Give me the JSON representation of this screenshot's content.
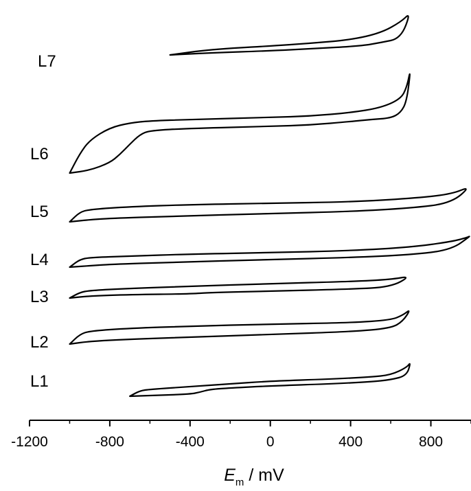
{
  "chart_data": {
    "type": "line",
    "title": "",
    "xlabel": {
      "symbol": "E",
      "subscript": "m",
      "unit": " / mV"
    },
    "ylabel": "",
    "xlim": [
      -1200,
      1000
    ],
    "x_ticks": [
      -1200,
      -800,
      -400,
      0,
      400,
      800
    ],
    "x_tick_labels": [
      "-1200",
      "-800",
      "-400",
      "0",
      "400",
      "800"
    ],
    "y_axis_shown": false,
    "grid": false,
    "legend": "none",
    "series": [
      {
        "name": "L7",
        "baseline": 0,
        "x_range": [
          -500,
          700
        ],
        "upper": [
          [
            -500,
            0
          ],
          [
            -300,
            8
          ],
          [
            0,
            13
          ],
          [
            200,
            17
          ],
          [
            400,
            22
          ],
          [
            550,
            32
          ],
          [
            650,
            48
          ],
          [
            700,
            62
          ]
        ],
        "lower": [
          [
            -500,
            0
          ],
          [
            -300,
            3
          ],
          [
            0,
            6
          ],
          [
            200,
            9
          ],
          [
            450,
            13
          ],
          [
            550,
            18
          ],
          [
            650,
            24
          ],
          [
            700,
            33
          ]
        ]
      },
      {
        "name": "L6",
        "baseline": 0,
        "x_range": [
          -1000,
          700
        ],
        "upper": [
          [
            -1000,
            0
          ],
          [
            -950,
            28
          ],
          [
            -900,
            48
          ],
          [
            -800,
            66
          ],
          [
            -700,
            73
          ],
          [
            -600,
            76
          ],
          [
            -400,
            78
          ],
          [
            0,
            81
          ],
          [
            200,
            83
          ],
          [
            400,
            88
          ],
          [
            550,
            95
          ],
          [
            650,
            108
          ],
          [
            680,
            125
          ],
          [
            700,
            153
          ]
        ],
        "lower": [
          [
            -1000,
            0
          ],
          [
            -900,
            4
          ],
          [
            -800,
            15
          ],
          [
            -750,
            27
          ],
          [
            -700,
            42
          ],
          [
            -650,
            56
          ],
          [
            -600,
            62
          ],
          [
            -400,
            65
          ],
          [
            0,
            68
          ],
          [
            200,
            70
          ],
          [
            400,
            75
          ],
          [
            500,
            78
          ],
          [
            600,
            80
          ],
          [
            650,
            88
          ],
          [
            680,
            105
          ],
          [
            700,
            125
          ]
        ]
      },
      {
        "name": "L5",
        "baseline": 0,
        "x_range": [
          -1000,
          1000
        ],
        "upper": [
          [
            -1000,
            0
          ],
          [
            -950,
            14
          ],
          [
            -900,
            18
          ],
          [
            -700,
            22
          ],
          [
            -400,
            25
          ],
          [
            0,
            27
          ],
          [
            400,
            29
          ],
          [
            700,
            34
          ],
          [
            900,
            40
          ],
          [
            1000,
            52
          ]
        ],
        "lower": [
          [
            -1000,
            0
          ],
          [
            -900,
            3
          ],
          [
            -800,
            5
          ],
          [
            -500,
            8
          ],
          [
            0,
            12
          ],
          [
            400,
            15
          ],
          [
            700,
            20
          ],
          [
            900,
            27
          ],
          [
            1000,
            37
          ]
        ]
      },
      {
        "name": "L4",
        "baseline": 0,
        "x_range": [
          -1000,
          1000
        ],
        "upper": [
          [
            -1000,
            0
          ],
          [
            -950,
            11
          ],
          [
            -900,
            14
          ],
          [
            -700,
            16
          ],
          [
            -400,
            19
          ],
          [
            0,
            21
          ],
          [
            400,
            24
          ],
          [
            700,
            29
          ],
          [
            900,
            37
          ],
          [
            980,
            43
          ],
          [
            1000,
            46
          ]
        ],
        "lower": [
          [
            -1000,
            0
          ],
          [
            -900,
            2
          ],
          [
            -800,
            4
          ],
          [
            -500,
            7
          ],
          [
            0,
            11
          ],
          [
            400,
            14
          ],
          [
            700,
            18
          ],
          [
            900,
            25
          ],
          [
            1000,
            35
          ]
        ]
      },
      {
        "name": "L3",
        "baseline": 0,
        "x_range": [
          -1000,
          700
        ],
        "upper": [
          [
            -1000,
            0
          ],
          [
            -950,
            8
          ],
          [
            -900,
            11
          ],
          [
            -700,
            14
          ],
          [
            -400,
            17
          ],
          [
            0,
            21
          ],
          [
            400,
            24
          ],
          [
            600,
            27
          ],
          [
            700,
            32
          ]
        ],
        "lower": [
          [
            -1000,
            0
          ],
          [
            -900,
            3
          ],
          [
            -700,
            5
          ],
          [
            -400,
            6
          ],
          [
            -300,
            8
          ],
          [
            0,
            10
          ],
          [
            400,
            13
          ],
          [
            600,
            16
          ],
          [
            700,
            24
          ]
        ]
      },
      {
        "name": "L2",
        "baseline": 0,
        "x_range": [
          -1000,
          700
        ],
        "upper": [
          [
            -1000,
            0
          ],
          [
            -950,
            14
          ],
          [
            -900,
            19
          ],
          [
            -700,
            23
          ],
          [
            -400,
            26
          ],
          [
            0,
            29
          ],
          [
            400,
            31
          ],
          [
            600,
            35
          ],
          [
            660,
            42
          ],
          [
            700,
            51
          ]
        ],
        "lower": [
          [
            -1000,
            0
          ],
          [
            -900,
            4
          ],
          [
            -700,
            7
          ],
          [
            -400,
            10
          ],
          [
            0,
            14
          ],
          [
            400,
            18
          ],
          [
            600,
            23
          ],
          [
            660,
            33
          ],
          [
            700,
            45
          ]
        ]
      },
      {
        "name": "L1",
        "baseline": 0,
        "x_range": [
          -700,
          700
        ],
        "upper": [
          [
            -700,
            0
          ],
          [
            -650,
            8
          ],
          [
            -600,
            10
          ],
          [
            -400,
            14
          ],
          [
            -200,
            18
          ],
          [
            0,
            22
          ],
          [
            300,
            25
          ],
          [
            500,
            28
          ],
          [
            600,
            31
          ],
          [
            680,
            42
          ],
          [
            700,
            50
          ]
        ],
        "lower": [
          [
            -700,
            0
          ],
          [
            -600,
            1
          ],
          [
            -400,
            3
          ],
          [
            -350,
            6
          ],
          [
            -300,
            10
          ],
          [
            -200,
            12
          ],
          [
            0,
            15
          ],
          [
            300,
            18
          ],
          [
            500,
            21
          ],
          [
            600,
            24
          ],
          [
            680,
            30
          ],
          [
            700,
            39
          ]
        ]
      }
    ]
  }
}
